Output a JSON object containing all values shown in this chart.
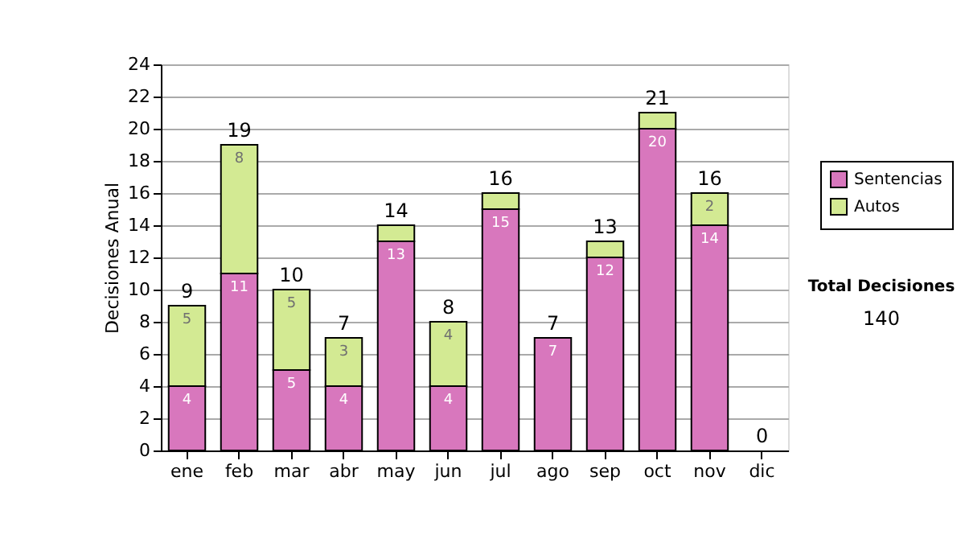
{
  "chart_data": {
    "type": "bar",
    "stacked": true,
    "ylabel": "Decisiones Anual",
    "categories": [
      "ene",
      "feb",
      "mar",
      "abr",
      "may",
      "jun",
      "jul",
      "ago",
      "sep",
      "oct",
      "nov",
      "dic"
    ],
    "series": [
      {
        "name": "Sentencias",
        "color": "#d877bd",
        "values": [
          4,
          11,
          5,
          4,
          13,
          4,
          15,
          7,
          12,
          20,
          14,
          0
        ],
        "value_labels": [
          "4",
          "11",
          "5",
          "4",
          "13",
          "4",
          "15",
          "7",
          "12",
          "20",
          "14",
          null
        ]
      },
      {
        "name": "Autos",
        "color": "#d3ea93",
        "values": [
          5,
          8,
          5,
          3,
          1,
          4,
          1,
          0,
          1,
          1,
          2,
          0
        ],
        "value_labels": [
          "5",
          "8",
          "5",
          "3",
          null,
          "4",
          null,
          null,
          null,
          null,
          "2",
          null
        ]
      }
    ],
    "totals": [
      "9",
      "19",
      "10",
      "7",
      "14",
      "8",
      "16",
      "7",
      "13",
      "21",
      "16",
      "0"
    ],
    "ylim": [
      0,
      24
    ],
    "yticks": [
      0,
      2,
      4,
      6,
      8,
      10,
      12,
      14,
      16,
      18,
      20,
      22,
      24
    ],
    "grid": "y",
    "legend": "right",
    "annotations": [
      "Total Decisiones",
      "140"
    ]
  }
}
